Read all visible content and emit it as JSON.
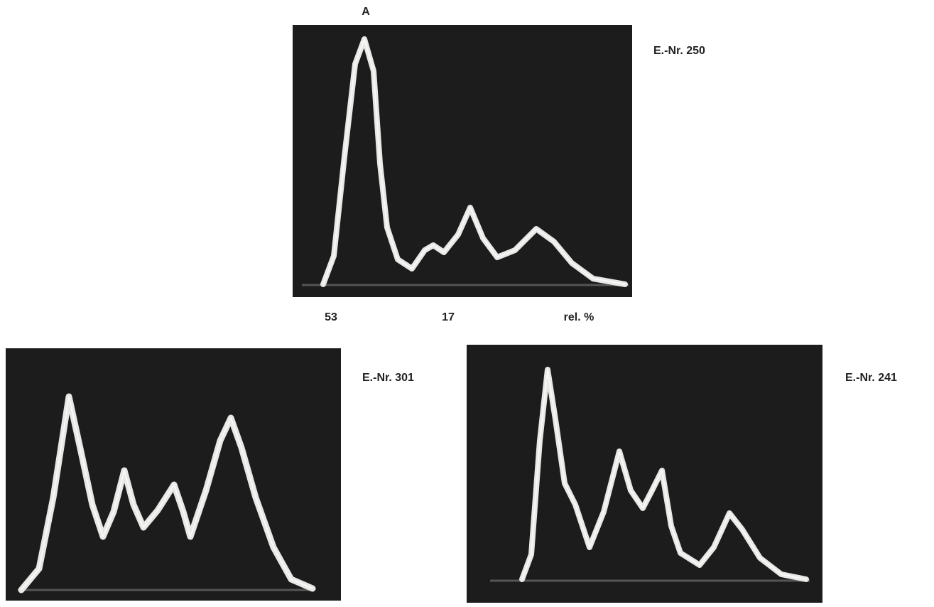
{
  "panels": [
    {
      "label": "E.-Nr. 250",
      "peak_label": "A",
      "scale": [
        53,
        17,
        "rel. %"
      ]
    },
    {
      "label": "E.-Nr. 301"
    },
    {
      "label": "E.-Nr. 241"
    }
  ]
}
